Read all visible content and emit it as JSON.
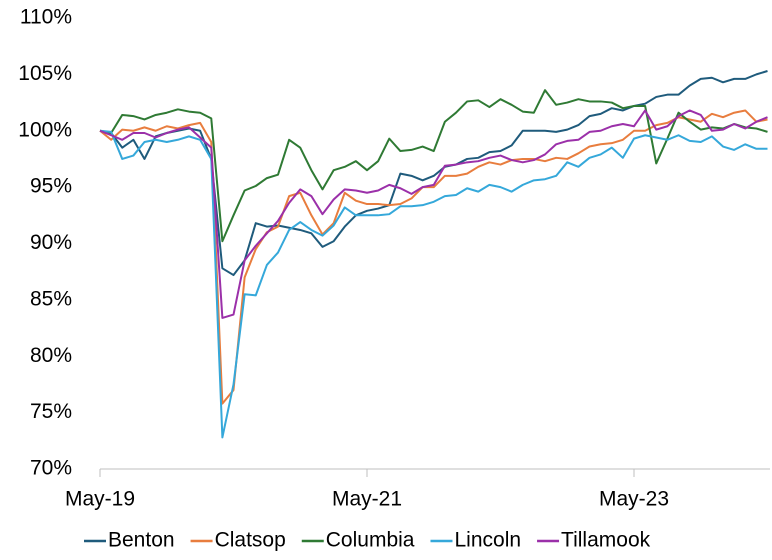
{
  "chart_data": {
    "type": "line",
    "categories": [
      "May-19",
      null,
      null,
      null,
      null,
      null,
      null,
      null,
      null,
      null,
      null,
      null,
      null,
      null,
      null,
      null,
      null,
      null,
      null,
      null,
      null,
      null,
      null,
      null,
      "May-21",
      null,
      null,
      null,
      null,
      null,
      null,
      null,
      null,
      null,
      null,
      null,
      null,
      null,
      null,
      null,
      null,
      null,
      null,
      null,
      null,
      null,
      null,
      null,
      "May-23",
      null,
      null,
      null,
      null,
      null,
      null,
      null,
      null,
      null,
      null,
      null,
      null
    ],
    "series": [
      {
        "name": "Benton",
        "color": "#1f5b7c",
        "values": [
          100,
          99.8,
          98.5,
          99.2,
          97.5,
          99.5,
          99.8,
          100,
          100.2,
          100,
          97.5,
          87.8,
          87.2,
          88.5,
          91.8,
          91.5,
          91.6,
          91.4,
          91.2,
          90.9,
          89.7,
          90.2,
          91.5,
          92.5,
          92.9,
          93.1,
          93.4,
          96.2,
          96,
          95.6,
          96,
          96.8,
          97,
          97.5,
          97.6,
          98.1,
          98.2,
          98.7,
          100,
          100,
          100,
          99.9,
          100.1,
          100.5,
          101.3,
          101.5,
          102,
          101.8,
          102.2,
          102.4,
          103,
          103.2,
          103.2,
          104,
          104.6,
          104.7,
          104.3,
          104.6,
          104.6,
          105,
          105.3
        ]
      },
      {
        "name": "Clatsop",
        "color": "#e87d3e",
        "values": [
          100,
          99.2,
          100.1,
          100,
          100.3,
          100,
          100.4,
          100.2,
          100.5,
          100.7,
          99,
          75.8,
          77,
          87,
          89.5,
          91,
          91.5,
          94.2,
          94.5,
          92.5,
          90.8,
          91.8,
          94.5,
          93.8,
          93.5,
          93.5,
          93.4,
          93.5,
          94,
          95,
          95,
          96,
          96,
          96.2,
          96.8,
          97.2,
          97,
          97.4,
          97.5,
          97.5,
          97.3,
          97.6,
          97.5,
          98,
          98.6,
          98.8,
          98.9,
          99.2,
          100,
          100,
          100.5,
          100.7,
          101.2,
          101,
          100.8,
          101.5,
          101.2,
          101.6,
          101.8,
          100.8,
          101
        ]
      },
      {
        "name": "Columbia",
        "color": "#2f7a34",
        "values": [
          100,
          99.8,
          101.4,
          101.3,
          101,
          101.4,
          101.6,
          101.9,
          101.7,
          101.6,
          101.1,
          90.2,
          92.5,
          94.7,
          95.1,
          95.8,
          96.1,
          99.2,
          98.5,
          96.5,
          94.8,
          96.5,
          96.8,
          97.3,
          96.5,
          97.3,
          99.3,
          98.2,
          98.3,
          98.6,
          98.2,
          100.8,
          101.6,
          102.6,
          102.7,
          102.1,
          102.8,
          102.3,
          101.7,
          101.6,
          103.6,
          102.3,
          102.5,
          102.8,
          102.6,
          102.6,
          102.5,
          102,
          102.2,
          102.2,
          97.1,
          99.3,
          101.6,
          100.8,
          100.1,
          100.3,
          100.2,
          100.6,
          100.3,
          100.2,
          99.9
        ]
      },
      {
        "name": "Lincoln",
        "color": "#35a8da",
        "values": [
          100,
          99.9,
          97.5,
          97.8,
          99,
          99.2,
          99,
          99.2,
          99.5,
          99.2,
          97.5,
          72.8,
          77.5,
          85.5,
          85.4,
          88.1,
          89.2,
          91.2,
          91.9,
          91.2,
          90.7,
          91.6,
          93.2,
          92.5,
          92.5,
          92.5,
          92.6,
          93.3,
          93.3,
          93.4,
          93.7,
          94.2,
          94.3,
          94.9,
          94.6,
          95.2,
          95,
          94.6,
          95.2,
          95.6,
          95.7,
          96,
          97.2,
          96.8,
          97.6,
          97.9,
          98.5,
          97.6,
          99.3,
          99.6,
          99.4,
          99.2,
          99.6,
          99.1,
          99,
          99.5,
          98.6,
          98.3,
          98.8,
          98.4,
          98.4
        ]
      },
      {
        "name": "Tillamook",
        "color": "#9b30a9",
        "values": [
          100,
          99.6,
          99.2,
          99.8,
          99.8,
          99.4,
          99.8,
          100.1,
          100.3,
          99.4,
          98.5,
          83.4,
          83.7,
          88.5,
          89.8,
          90.9,
          92,
          93.6,
          94.8,
          94.2,
          92.6,
          93.9,
          94.8,
          94.7,
          94.5,
          94.7,
          95.2,
          94.9,
          94.4,
          95,
          95.2,
          96.9,
          97,
          97.2,
          97.3,
          97.6,
          97.8,
          97.4,
          97.2,
          97.4,
          97.9,
          98.8,
          99.1,
          99.2,
          99.9,
          100,
          100.4,
          100.6,
          100.4,
          101.8,
          100.1,
          100.4,
          101.3,
          101.8,
          101.4,
          100,
          100.1,
          100.6,
          100.2,
          100.8,
          101.2
        ]
      }
    ],
    "ylim": [
      70,
      110
    ],
    "yticks": [
      {
        "value": 70,
        "label": "70%"
      },
      {
        "value": 75,
        "label": "75%"
      },
      {
        "value": 80,
        "label": "80%"
      },
      {
        "value": 85,
        "label": "85%"
      },
      {
        "value": 90,
        "label": "90%"
      },
      {
        "value": 95,
        "label": "95%"
      },
      {
        "value": 100,
        "label": "100%"
      },
      {
        "value": 105,
        "label": "105%"
      },
      {
        "value": 110,
        "label": "110%"
      }
    ],
    "grid": false,
    "legend": "bottom"
  }
}
